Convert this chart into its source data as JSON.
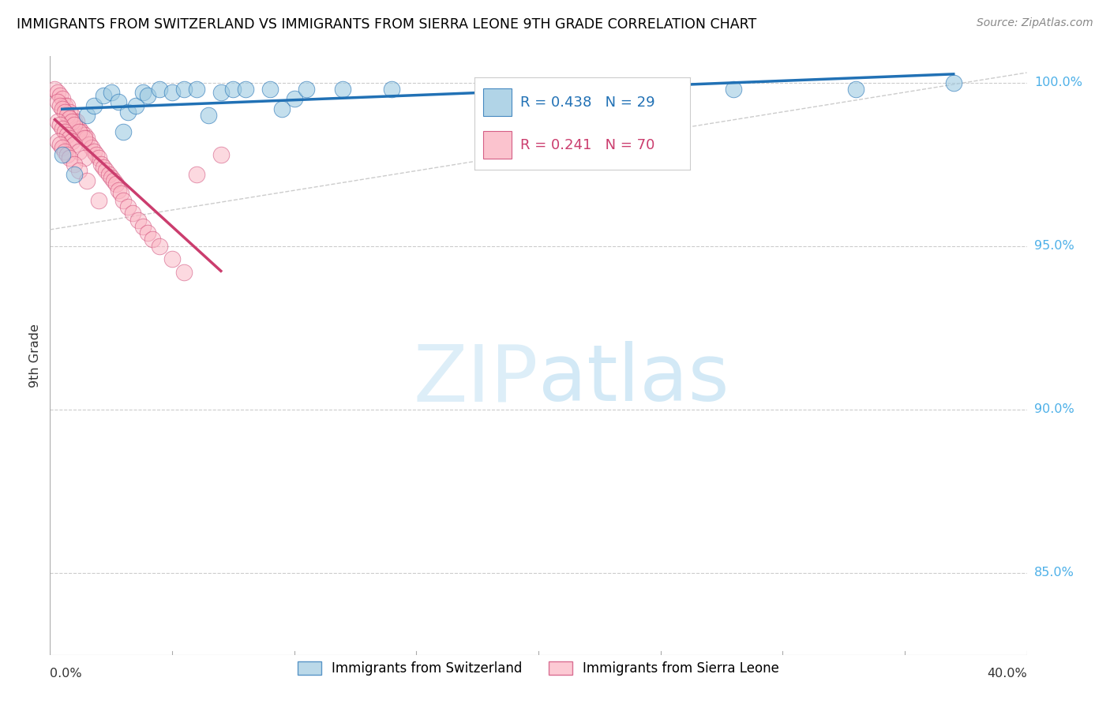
{
  "title": "IMMIGRANTS FROM SWITZERLAND VS IMMIGRANTS FROM SIERRA LEONE 9TH GRADE CORRELATION CHART",
  "source": "Source: ZipAtlas.com",
  "ylabel": "9th Grade",
  "x_range": [
    0.0,
    0.4
  ],
  "y_range": [
    0.825,
    1.008
  ],
  "R_switzerland": 0.438,
  "N_switzerland": 29,
  "R_sierra_leone": 0.241,
  "N_sierra_leone": 70,
  "color_switzerland": "#9ecae1",
  "color_sierra_leone": "#fbb4c2",
  "trendline_color_switzerland": "#2171b5",
  "trendline_color_sierra_leone": "#cb3d6e",
  "legend_label_switzerland": "Immigrants from Switzerland",
  "legend_label_sierra_leone": "Immigrants from Sierra Leone",
  "sw_x": [
    0.005,
    0.01,
    0.015,
    0.018,
    0.022,
    0.025,
    0.028,
    0.03,
    0.032,
    0.035,
    0.038,
    0.04,
    0.045,
    0.05,
    0.055,
    0.06,
    0.065,
    0.07,
    0.075,
    0.08,
    0.09,
    0.095,
    0.1,
    0.105,
    0.12,
    0.14,
    0.28,
    0.33,
    0.37
  ],
  "sw_y": [
    0.978,
    0.972,
    0.99,
    0.993,
    0.996,
    0.997,
    0.994,
    0.985,
    0.991,
    0.993,
    0.997,
    0.996,
    0.998,
    0.997,
    0.998,
    0.998,
    0.99,
    0.997,
    0.998,
    0.998,
    0.998,
    0.992,
    0.995,
    0.998,
    0.998,
    0.998,
    0.998,
    0.998,
    1.0
  ],
  "sl_x": [
    0.002,
    0.003,
    0.004,
    0.005,
    0.006,
    0.007,
    0.008,
    0.009,
    0.01,
    0.011,
    0.012,
    0.013,
    0.014,
    0.015,
    0.016,
    0.017,
    0.018,
    0.019,
    0.02,
    0.021,
    0.022,
    0.023,
    0.024,
    0.025,
    0.026,
    0.027,
    0.028,
    0.029,
    0.03,
    0.032,
    0.034,
    0.036,
    0.038,
    0.04,
    0.042,
    0.045,
    0.05,
    0.055,
    0.06,
    0.07,
    0.003,
    0.004,
    0.005,
    0.006,
    0.007,
    0.008,
    0.009,
    0.01,
    0.012,
    0.014,
    0.003,
    0.004,
    0.005,
    0.006,
    0.007,
    0.008,
    0.009,
    0.01,
    0.012,
    0.014,
    0.003,
    0.004,
    0.005,
    0.006,
    0.007,
    0.008,
    0.01,
    0.012,
    0.015,
    0.02
  ],
  "sl_y": [
    0.998,
    0.997,
    0.996,
    0.995,
    0.993,
    0.993,
    0.991,
    0.99,
    0.988,
    0.988,
    0.986,
    0.985,
    0.984,
    0.983,
    0.981,
    0.98,
    0.979,
    0.978,
    0.977,
    0.975,
    0.974,
    0.973,
    0.972,
    0.971,
    0.97,
    0.969,
    0.967,
    0.966,
    0.964,
    0.962,
    0.96,
    0.958,
    0.956,
    0.954,
    0.952,
    0.95,
    0.946,
    0.942,
    0.972,
    0.978,
    0.994,
    0.993,
    0.992,
    0.991,
    0.99,
    0.989,
    0.988,
    0.987,
    0.985,
    0.983,
    0.988,
    0.987,
    0.986,
    0.985,
    0.984,
    0.983,
    0.982,
    0.981,
    0.979,
    0.977,
    0.982,
    0.981,
    0.98,
    0.979,
    0.978,
    0.977,
    0.975,
    0.973,
    0.97,
    0.964
  ]
}
